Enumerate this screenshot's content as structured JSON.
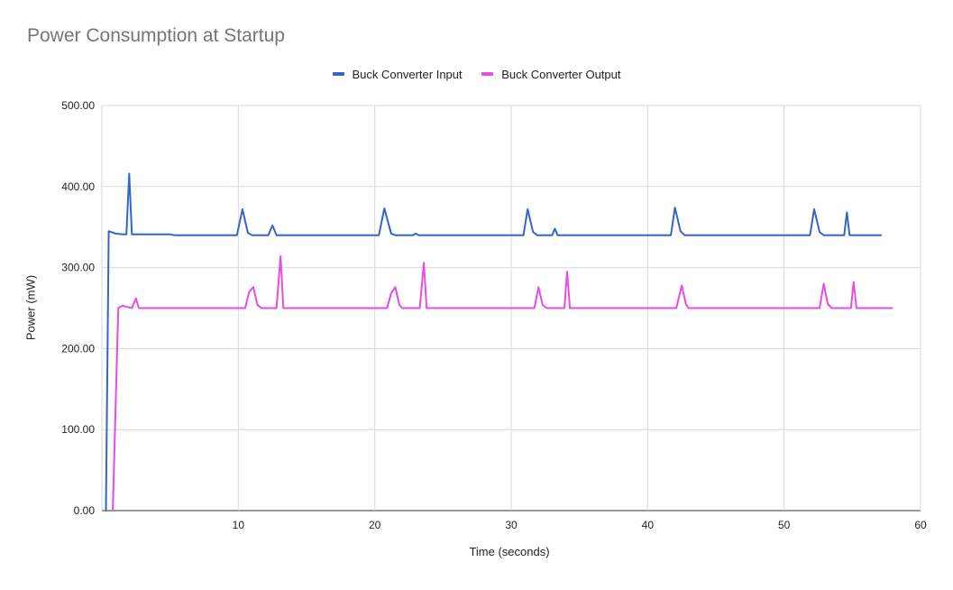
{
  "chart_data": {
    "type": "line",
    "title": "Power Consumption at Startup",
    "xlabel": "Time (seconds)",
    "ylabel": "Power (mW)",
    "xlim": [
      0,
      60
    ],
    "ylim": [
      0,
      500
    ],
    "x_ticks": [
      10,
      20,
      30,
      40,
      50,
      60
    ],
    "y_ticks": [
      0,
      100,
      200,
      300,
      400,
      500
    ],
    "y_tick_labels": [
      "0.00",
      "100.00",
      "200.00",
      "300.00",
      "400.00",
      "500.00"
    ],
    "grid": true,
    "legend_position": "top",
    "series": [
      {
        "name": "Buck Converter Input",
        "color": "#3366cc",
        "points": [
          [
            0.3,
            0
          ],
          [
            0.5,
            345
          ],
          [
            1.0,
            342
          ],
          [
            1.5,
            341
          ],
          [
            1.8,
            341
          ],
          [
            2.0,
            416
          ],
          [
            2.2,
            341
          ],
          [
            5.0,
            341
          ],
          [
            5.3,
            340
          ],
          [
            9.9,
            340
          ],
          [
            10.3,
            372
          ],
          [
            10.7,
            343
          ],
          [
            11.0,
            340
          ],
          [
            12.2,
            340
          ],
          [
            12.5,
            352
          ],
          [
            12.8,
            340
          ],
          [
            20.3,
            340
          ],
          [
            20.7,
            373
          ],
          [
            21.2,
            342
          ],
          [
            21.5,
            340
          ],
          [
            22.8,
            340
          ],
          [
            23.0,
            342
          ],
          [
            23.2,
            340
          ],
          [
            30.9,
            340
          ],
          [
            31.2,
            372
          ],
          [
            31.6,
            344
          ],
          [
            31.9,
            340
          ],
          [
            33.0,
            340
          ],
          [
            33.2,
            348
          ],
          [
            33.4,
            340
          ],
          [
            41.7,
            340
          ],
          [
            42.0,
            374
          ],
          [
            42.4,
            345
          ],
          [
            42.7,
            340
          ],
          [
            51.9,
            340
          ],
          [
            52.2,
            372
          ],
          [
            52.6,
            344
          ],
          [
            52.9,
            340
          ],
          [
            54.4,
            340
          ],
          [
            54.6,
            368
          ],
          [
            54.8,
            340
          ],
          [
            57.1,
            340
          ]
        ]
      },
      {
        "name": "Buck Converter Output",
        "color": "#e64ce6",
        "points": [
          [
            0.8,
            0
          ],
          [
            1.2,
            250
          ],
          [
            1.5,
            253
          ],
          [
            2.2,
            250
          ],
          [
            2.5,
            262
          ],
          [
            2.7,
            250
          ],
          [
            10.5,
            250
          ],
          [
            10.8,
            270
          ],
          [
            11.1,
            276
          ],
          [
            11.4,
            254
          ],
          [
            11.7,
            250
          ],
          [
            12.8,
            250
          ],
          [
            13.1,
            314
          ],
          [
            13.3,
            250
          ],
          [
            20.9,
            250
          ],
          [
            21.2,
            268
          ],
          [
            21.5,
            276
          ],
          [
            21.8,
            254
          ],
          [
            22.0,
            250
          ],
          [
            23.3,
            250
          ],
          [
            23.6,
            306
          ],
          [
            23.8,
            250
          ],
          [
            31.7,
            250
          ],
          [
            32.0,
            276
          ],
          [
            32.3,
            254
          ],
          [
            32.6,
            250
          ],
          [
            33.9,
            250
          ],
          [
            34.1,
            295
          ],
          [
            34.3,
            250
          ],
          [
            42.1,
            250
          ],
          [
            42.5,
            278
          ],
          [
            42.8,
            255
          ],
          [
            43.0,
            250
          ],
          [
            52.6,
            250
          ],
          [
            52.9,
            280
          ],
          [
            53.2,
            255
          ],
          [
            53.5,
            250
          ],
          [
            54.9,
            250
          ],
          [
            55.1,
            282
          ],
          [
            55.3,
            250
          ],
          [
            57.9,
            250
          ]
        ]
      }
    ]
  }
}
